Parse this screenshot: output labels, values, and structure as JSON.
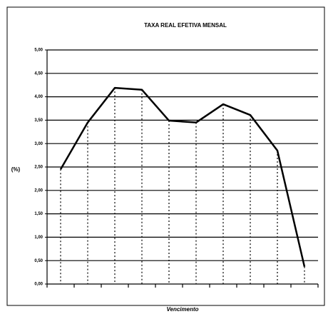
{
  "chart_data": {
    "type": "line",
    "title": "TAXA REAL EFETIVA MENSAL",
    "ylabel": "(%)",
    "xlabel": "Vencimento",
    "categories": [
      null,
      null,
      null,
      null,
      null,
      null,
      null,
      null,
      null,
      null
    ],
    "values": [
      2.45,
      3.45,
      4.19,
      4.15,
      3.49,
      3.45,
      3.84,
      3.61,
      2.85,
      0.37
    ],
    "color": "#000000",
    "ylim": [
      0,
      5
    ],
    "yticks": [
      {
        "value": 0,
        "label": "0,00"
      },
      {
        "value": 0.5,
        "label": "0,50"
      },
      {
        "value": 1,
        "label": "1,00"
      },
      {
        "value": 1.5,
        "label": "1,50"
      },
      {
        "value": 2,
        "label": "2,00"
      },
      {
        "value": 2.5,
        "label": "2,50"
      },
      {
        "value": 3,
        "label": "3,00"
      },
      {
        "value": 3.5,
        "label": "3,50"
      },
      {
        "value": 4,
        "label": "4,00"
      },
      {
        "value": 4.5,
        "label": "4,50"
      },
      {
        "value": 5,
        "label": "5,00"
      }
    ],
    "grid": true
  }
}
